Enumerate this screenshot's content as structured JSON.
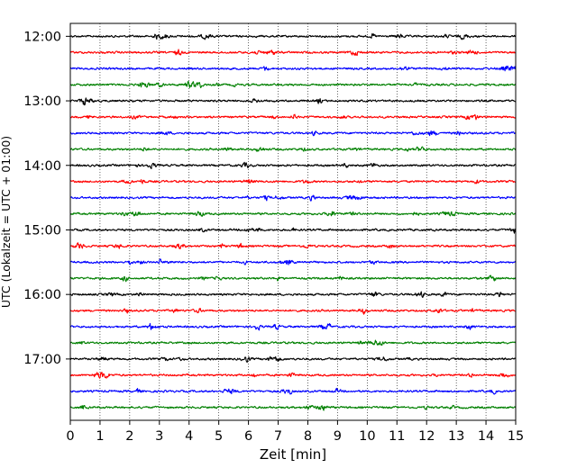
{
  "chart_data": {
    "type": "line",
    "title": "",
    "xlabel": "Zeit  [min]",
    "ylabel": "UTC (Lokalzeit = UTC + 01:00)",
    "xlim": [
      0,
      15
    ],
    "x_ticks": [
      "0",
      "1",
      "2",
      "3",
      "4",
      "5",
      "6",
      "7",
      "8",
      "9",
      "10",
      "11",
      "12",
      "13",
      "14",
      "15"
    ],
    "y_ticks": [
      "12:00",
      "13:00",
      "14:00",
      "15:00",
      "16:00",
      "17:00"
    ],
    "ylim_rows": [
      -0.8,
      23.8
    ],
    "grid": "vertical-dotted",
    "colors": [
      "#000000",
      "#ff0000",
      "#0000ff",
      "#008000"
    ],
    "traces": [
      {
        "start": "12:00",
        "color": "#000000"
      },
      {
        "start": "12:15",
        "color": "#ff0000"
      },
      {
        "start": "12:30",
        "color": "#0000ff"
      },
      {
        "start": "12:45",
        "color": "#008000"
      },
      {
        "start": "13:00",
        "color": "#000000"
      },
      {
        "start": "13:15",
        "color": "#ff0000"
      },
      {
        "start": "13:30",
        "color": "#0000ff"
      },
      {
        "start": "13:45",
        "color": "#008000"
      },
      {
        "start": "14:00",
        "color": "#000000"
      },
      {
        "start": "14:15",
        "color": "#ff0000"
      },
      {
        "start": "14:30",
        "color": "#0000ff"
      },
      {
        "start": "14:45",
        "color": "#008000"
      },
      {
        "start": "15:00",
        "color": "#000000"
      },
      {
        "start": "15:15",
        "color": "#ff0000"
      },
      {
        "start": "15:30",
        "color": "#0000ff"
      },
      {
        "start": "15:45",
        "color": "#008000"
      },
      {
        "start": "16:00",
        "color": "#000000"
      },
      {
        "start": "16:15",
        "color": "#ff0000"
      },
      {
        "start": "16:30",
        "color": "#0000ff"
      },
      {
        "start": "16:45",
        "color": "#008000"
      },
      {
        "start": "17:00",
        "color": "#000000"
      },
      {
        "start": "17:15",
        "color": "#ff0000"
      },
      {
        "start": "17:30",
        "color": "#0000ff"
      },
      {
        "start": "17:45",
        "color": "#008000"
      }
    ]
  }
}
